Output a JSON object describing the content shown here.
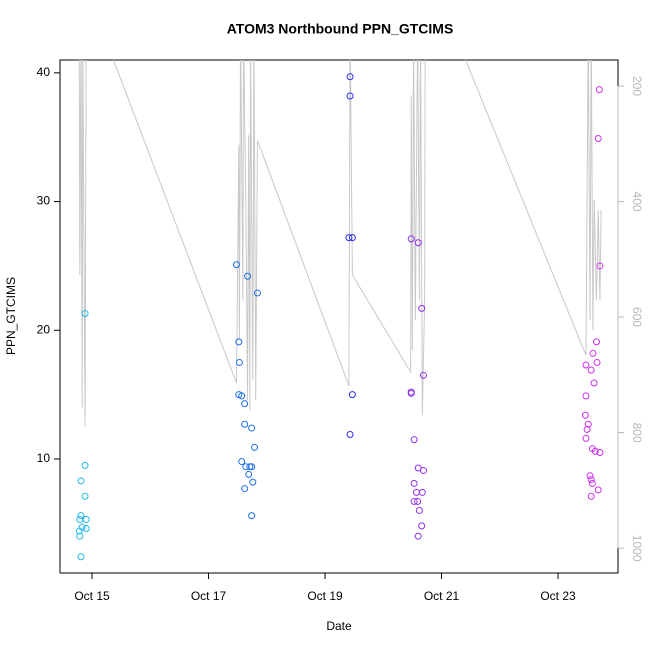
{
  "chart_data": {
    "type": "scatter",
    "title": "ATOM3 Northbound PPN_GTCIMS",
    "x_label": "Date",
    "y_label": "PPN_GTCIMS",
    "xlim": [
      14.45,
      24.03
    ],
    "xticks": [
      {
        "value": 15,
        "label": "Oct 15"
      },
      {
        "value": 17,
        "label": "Oct 17"
      },
      {
        "value": 19,
        "label": "Oct 19"
      },
      {
        "value": 21,
        "label": "Oct 21"
      },
      {
        "value": 23,
        "label": "Oct 23"
      }
    ],
    "ylim": [
      1.14,
      41.0
    ],
    "yticks": [
      10,
      20,
      30,
      40
    ],
    "y2lim": [
      1043,
      155
    ],
    "y2ticks": [
      200,
      400,
      600,
      800,
      1000
    ],
    "series": [
      {
        "type": "scatter",
        "color": "#22b8e8",
        "x": [
          14.88,
          14.88,
          14.81,
          14.88,
          14.81,
          14.79,
          14.9,
          14.83,
          14.78,
          14.9,
          14.79,
          14.81
        ],
        "values": [
          21.3,
          9.5,
          8.3,
          7.1,
          5.6,
          5.3,
          5.3,
          4.7,
          4.4,
          4.6,
          4.0,
          2.4
        ]
      },
      {
        "type": "scatter",
        "color": "#1f6fe8",
        "x": [
          17.48,
          17.67,
          17.84,
          17.52,
          17.53,
          17.52,
          17.57,
          17.62,
          17.62,
          17.74,
          17.79,
          17.57,
          17.64,
          17.71,
          17.74,
          17.69,
          17.76,
          17.62,
          17.74
        ],
        "values": [
          25.1,
          24.2,
          22.9,
          19.1,
          17.5,
          15.0,
          14.9,
          14.3,
          12.7,
          12.4,
          10.9,
          9.8,
          9.4,
          9.4,
          9.4,
          8.8,
          8.2,
          7.7,
          5.6
        ]
      },
      {
        "type": "scatter",
        "color": "#3030e8",
        "x": [
          19.43,
          19.43,
          19.41,
          19.47,
          19.47,
          19.43
        ],
        "values": [
          39.7,
          38.2,
          27.2,
          27.2,
          15.0,
          11.9
        ]
      },
      {
        "type": "scatter",
        "color": "#9030ea",
        "x": [
          20.48,
          20.6,
          20.66,
          20.69,
          20.48,
          20.48,
          20.53,
          20.6,
          20.69,
          20.53,
          20.57,
          20.67,
          20.53,
          20.59,
          20.62,
          20.66,
          20.6
        ],
        "values": [
          27.1,
          26.8,
          21.7,
          16.5,
          15.2,
          15.1,
          11.5,
          9.3,
          9.1,
          8.1,
          7.4,
          7.4,
          6.7,
          6.7,
          6.0,
          4.8,
          4.0
        ]
      },
      {
        "type": "scatter",
        "color": "#cc30ec",
        "x": [
          23.71,
          23.69,
          23.72,
          23.66,
          23.6,
          23.67,
          23.48,
          23.57,
          23.62,
          23.48,
          23.47,
          23.52,
          23.5,
          23.48,
          23.59,
          23.64,
          23.72,
          23.55,
          23.57,
          23.59,
          23.69,
          23.57
        ],
        "values": [
          38.7,
          34.9,
          25.0,
          19.1,
          18.2,
          17.5,
          17.3,
          16.9,
          15.9,
          14.9,
          13.4,
          12.7,
          12.3,
          11.6,
          10.8,
          10.6,
          10.5,
          8.7,
          8.4,
          8.1,
          7.6,
          7.1
        ]
      },
      {
        "type": "line",
        "axis": "y2",
        "color": "#c8c8c8",
        "x": [
          14.78,
          14.79,
          14.81,
          14.83,
          14.84,
          14.88,
          14.9,
          15.16,
          17.48,
          17.52,
          17.53,
          17.55,
          17.59,
          17.6,
          17.64,
          17.67,
          17.69,
          17.71,
          17.72,
          17.76,
          17.78,
          17.81,
          17.84,
          19.41,
          19.43,
          19.47,
          20.47,
          20.48,
          20.5,
          20.52,
          20.55,
          20.59,
          20.62,
          20.64,
          20.67,
          20.71,
          20.72,
          21.19,
          23.48,
          23.52,
          23.55,
          23.57,
          23.6,
          23.62,
          23.66,
          23.69,
          23.72,
          23.74
        ],
        "values": [
          100,
          527,
          100,
          756,
          100,
          790,
          100,
          100,
          714,
          302,
          640,
          100,
          571,
          100,
          397,
          744,
          285,
          761,
          100,
          709,
          100,
          744,
          294,
          719,
          100,
          527,
          695,
          216,
          657,
          100,
          605,
          100,
          571,
          100,
          770,
          571,
          100,
          100,
          666,
          100,
          605,
          100,
          623,
          397,
          571,
          415,
          571,
          415
        ]
      }
    ]
  }
}
